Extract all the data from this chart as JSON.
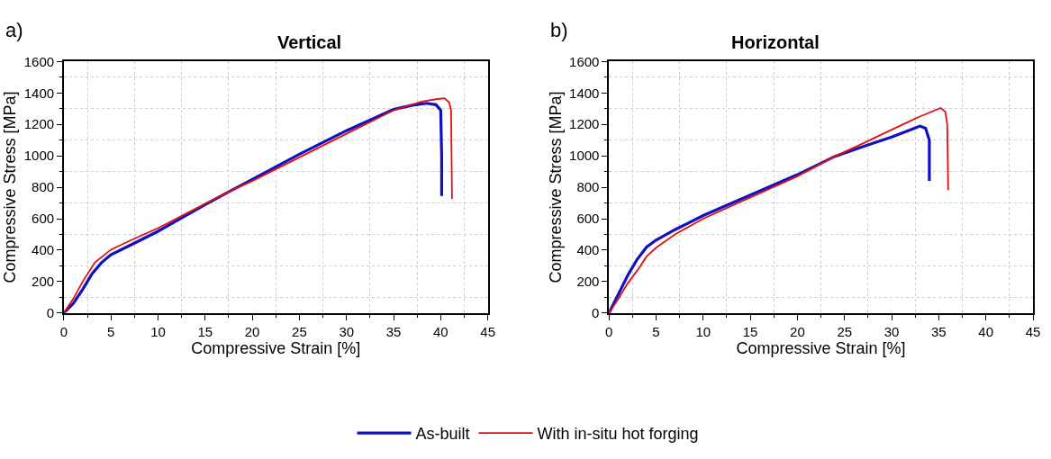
{
  "chart_data": [
    {
      "type": "line",
      "title": "Vertical",
      "xlabel": "Compressive Strain [%]",
      "ylabel": "Compressive Stress [MPa]",
      "annotations": [
        "a)"
      ],
      "xlim": [
        0,
        45
      ],
      "xticks": [
        0,
        5,
        10,
        15,
        20,
        25,
        30,
        35,
        40,
        45
      ],
      "ylim": [
        0,
        1600
      ],
      "yticks": [
        0,
        200,
        400,
        600,
        800,
        1000,
        1200,
        1400,
        1600
      ],
      "grid": true,
      "legend": "bottom",
      "series": [
        {
          "name": "As-built",
          "color": "#1010c0",
          "x": [
            0,
            1,
            2,
            3,
            4,
            5,
            7,
            10,
            15,
            17.6,
            20,
            25,
            30,
            35,
            37,
            38.5,
            39.5,
            40,
            40.1,
            40.1
          ],
          "values": [
            0,
            60,
            150,
            250,
            320,
            371,
            430,
            520,
            690,
            774,
            850,
            1010,
            1160,
            1295,
            1322,
            1334,
            1325,
            1290,
            1000,
            745
          ]
        },
        {
          "name": "With in-situ hot forging",
          "color": "#e01010",
          "x": [
            0,
            1,
            2,
            3.3,
            5,
            7,
            10,
            15,
            17.6,
            20,
            25,
            30,
            35,
            38,
            39.5,
            40.4,
            40.9,
            41.1,
            41.2
          ],
          "values": [
            0,
            90,
            200,
            322,
            403,
            460,
            540,
            695,
            774,
            840,
            990,
            1140,
            1290,
            1345,
            1360,
            1366,
            1340,
            1290,
            726
          ]
        }
      ]
    },
    {
      "type": "line",
      "title": "Horizontal",
      "xlabel": "Compressive Strain [%]",
      "ylabel": "Compressive Stress [MPa]",
      "annotations": [
        "b)"
      ],
      "xlim": [
        0,
        45
      ],
      "xticks": [
        0,
        5,
        10,
        15,
        20,
        25,
        30,
        35,
        40,
        45
      ],
      "ylim": [
        0,
        1600
      ],
      "yticks": [
        0,
        200,
        400,
        600,
        800,
        1000,
        1200,
        1400,
        1600
      ],
      "grid": true,
      "legend": "bottom",
      "series": [
        {
          "name": "As-built",
          "color": "#1010c0",
          "x": [
            0,
            1,
            2,
            3,
            4,
            5,
            7,
            10,
            15,
            20,
            24,
            27,
            30,
            32,
            33,
            33.6,
            34.0,
            34.0
          ],
          "values": [
            0,
            120,
            240,
            342,
            420,
            464,
            530,
            620,
            750,
            880,
            997,
            1060,
            1120,
            1165,
            1189,
            1175,
            1100,
            840
          ]
        },
        {
          "name": "With in-situ hot forging",
          "color": "#e01010",
          "x": [
            0,
            1,
            2,
            3,
            4,
            5,
            7,
            10,
            15,
            20,
            24,
            27,
            30,
            33,
            35.2,
            35.7,
            35.9,
            36.0
          ],
          "values": [
            0,
            90,
            190,
            270,
            360,
            415,
            500,
            600,
            735,
            870,
            997,
            1080,
            1166,
            1250,
            1304,
            1280,
            1200,
            782
          ]
        }
      ]
    }
  ]
}
